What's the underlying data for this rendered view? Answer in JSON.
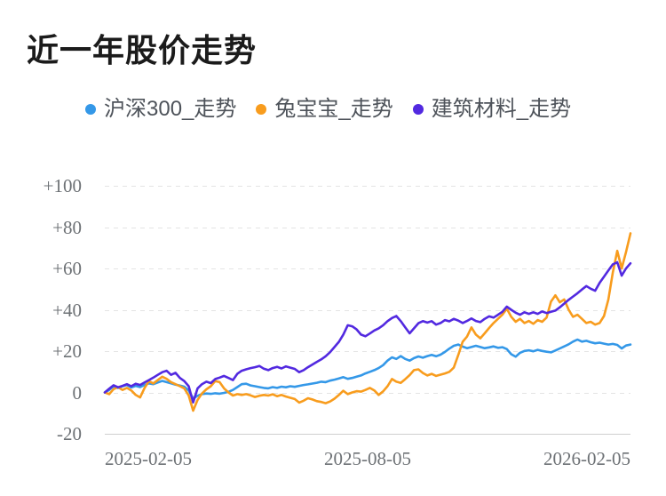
{
  "chart_data": {
    "type": "line",
    "title": "近一年股价走势",
    "legend_position": "top",
    "grid": "horizontal dashed gridlines, solid bottom axis line",
    "x_tick_labels": [
      "2025-02-05",
      "2025-08-05",
      "2026-02-05"
    ],
    "y_ticks": [
      100,
      80,
      60,
      40,
      20,
      0,
      -20
    ],
    "y_tick_labels": [
      "+100",
      "+80",
      "+60",
      "+40",
      "+20",
      "0",
      "-20"
    ],
    "ylim": [
      -20,
      100
    ],
    "series": [
      {
        "name": "沪深300_走势",
        "color": "#3498e8",
        "values": [
          0,
          1.2,
          3,
          2.2,
          3,
          3.6,
          2.4,
          3.2,
          2.6,
          3.6,
          4.4,
          4,
          4.8,
          5.6,
          5,
          4.4,
          3.8,
          3.3,
          2.8,
          1,
          -3,
          -1.6,
          -0.8,
          -0.5,
          -0.7,
          -0.4,
          -0.6,
          -0.2,
          0.3,
          1.2,
          2.6,
          4,
          4.2,
          3.4,
          3,
          2.6,
          2.2,
          2,
          2.6,
          2.2,
          2.8,
          2.5,
          3,
          2.7,
          3.2,
          3.6,
          3.9,
          4.3,
          4.7,
          5.2,
          5,
          5.7,
          6.2,
          6.8,
          7.4,
          6.6,
          7,
          7.6,
          8.2,
          9.2,
          10,
          10.8,
          11.8,
          13.2,
          15.4,
          17,
          16.2,
          17.6,
          16.2,
          15.4,
          16.6,
          17.4,
          16.8,
          17.6,
          18.2,
          17.5,
          18.3,
          19.6,
          21.2,
          22.6,
          23.2,
          22.2,
          21.4,
          22,
          22.6,
          22,
          21.4,
          21.8,
          22.3,
          21.6,
          21.9,
          21,
          18.5,
          17.3,
          19.2,
          20.1,
          20.4,
          19.9,
          20.6,
          20.1,
          19.7,
          19.4,
          20.3,
          21.3,
          22.3,
          23.3,
          24.6,
          25.6,
          24.6,
          25,
          24.3,
          23.8,
          24.1,
          23.6,
          23.2,
          23.5,
          23,
          21.3,
          22.7,
          23.2
        ]
      },
      {
        "name": "兔宝宝_走势",
        "color": "#f89c1d",
        "values": [
          0,
          -0.8,
          1.6,
          2.6,
          1.2,
          2.2,
          1,
          -1.2,
          -2.4,
          2.2,
          5.4,
          4.4,
          6,
          7.6,
          6.6,
          5,
          4,
          3,
          2,
          -1.5,
          -8.8,
          -3.6,
          -0.5,
          1.5,
          3,
          5.5,
          5,
          2,
          0,
          -1.5,
          -0.8,
          -1.2,
          -0.8,
          -1.4,
          -2.2,
          -1.6,
          -1.2,
          -1.5,
          -0.9,
          -1.8,
          -1.2,
          -2,
          -2.6,
          -3.2,
          -4.9,
          -4,
          -2.8,
          -3.4,
          -4.2,
          -4.6,
          -5.2,
          -4.4,
          -3,
          -1.2,
          0.8,
          -0.8,
          0,
          0.6,
          0.4,
          1.2,
          2.2,
          1,
          -1.2,
          0.5,
          3,
          6.5,
          5.2,
          4.6,
          6.4,
          8.4,
          10.8,
          11.2,
          9.4,
          8.2,
          9,
          8,
          8.6,
          9.2,
          10,
          12,
          18,
          24.5,
          27,
          31.5,
          28,
          26.2,
          28.6,
          31.2,
          33.6,
          35.6,
          37.6,
          40.5,
          36.6,
          34.2,
          35.6,
          33.6,
          34.6,
          33.2,
          35,
          34.2,
          36.2,
          44,
          47,
          43.6,
          45,
          40,
          36.6,
          37.6,
          35.6,
          33.6,
          34.2,
          32.8,
          33.6,
          37,
          45,
          58,
          68.5,
          60,
          68,
          77
        ]
      },
      {
        "name": "建筑材料_走势",
        "color": "#5229e0",
        "values": [
          0,
          1.8,
          3.5,
          2.5,
          3.2,
          4,
          3,
          4.2,
          3.6,
          4.8,
          6,
          7.2,
          8.5,
          9.8,
          10.5,
          8.5,
          9.5,
          7,
          5.5,
          3,
          -4.8,
          2,
          4,
          5.2,
          4.5,
          6.5,
          7.2,
          8,
          7,
          6,
          9,
          10.5,
          11.2,
          11.8,
          12.2,
          12.8,
          11.5,
          10.8,
          11.8,
          12.4,
          11.6,
          12.6,
          12,
          11.4,
          9.8,
          10.8,
          12.2,
          13.5,
          14.8,
          16,
          17.5,
          19.5,
          22,
          24.5,
          28,
          32.5,
          32,
          30.5,
          28,
          27.2,
          28.5,
          30,
          31,
          32.5,
          34.5,
          36,
          37,
          34.5,
          31.5,
          28.6,
          31,
          33.5,
          34.5,
          33.8,
          34.5,
          32.8,
          33.6,
          35,
          34.4,
          35.6,
          34.8,
          33.6,
          34.6,
          35.8,
          34.6,
          34,
          35.6,
          36.8,
          36.2,
          37.6,
          39,
          41.5,
          40,
          38.6,
          37.6,
          38.8,
          38,
          38.8,
          38,
          39.2,
          38.4,
          39,
          39.6,
          41.2,
          43,
          44.8,
          46.4,
          48,
          49.8,
          51.5,
          50.2,
          49.2,
          53,
          56,
          59,
          62,
          63,
          56.5,
          60,
          62.5
        ]
      }
    ]
  }
}
